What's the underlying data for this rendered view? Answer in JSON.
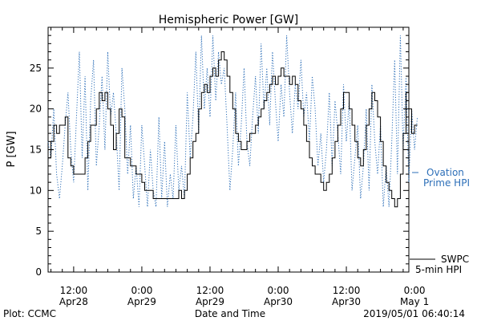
{
  "chart_data": {
    "type": "line",
    "title": "Hemispheric Power [GW]",
    "xlabel": "Date and Time",
    "ylabel": "P [GW]",
    "ylim": [
      0,
      30
    ],
    "yticks": [
      0,
      5,
      10,
      15,
      20,
      25
    ],
    "xlim_hours": [
      -16.5,
      47.0
    ],
    "xticks": [
      {
        "hour": -12,
        "time": "12:00",
        "date": "Apr28"
      },
      {
        "hour": 0,
        "time": "0:00",
        "date": "Apr29"
      },
      {
        "hour": 12,
        "time": "12:00",
        "date": "Apr29"
      },
      {
        "hour": 24,
        "time": "0:00",
        "date": "Apr30"
      },
      {
        "hour": 36,
        "time": "12:00",
        "date": "Apr30"
      },
      {
        "hour": 48,
        "time": "0:00",
        "date": "May 1"
      }
    ],
    "series": [
      {
        "name": "SWPC 5-min HPI",
        "color": "#000000",
        "style": "solid",
        "points": [
          [
            -16.5,
            14
          ],
          [
            -16,
            16
          ],
          [
            -15.5,
            18
          ],
          [
            -15,
            17
          ],
          [
            -14.5,
            18
          ],
          [
            -14,
            18
          ],
          [
            -13.5,
            19
          ],
          [
            -13,
            14
          ],
          [
            -12.5,
            13
          ],
          [
            -12,
            12
          ],
          [
            -11,
            12
          ],
          [
            -10.5,
            12
          ],
          [
            -10,
            14
          ],
          [
            -9.5,
            16
          ],
          [
            -9,
            18
          ],
          [
            -8.5,
            18
          ],
          [
            -8,
            20
          ],
          [
            -7.5,
            22
          ],
          [
            -7,
            21
          ],
          [
            -6.5,
            22
          ],
          [
            -6,
            20
          ],
          [
            -5.5,
            18
          ],
          [
            -5,
            15
          ],
          [
            -4.5,
            17
          ],
          [
            -4,
            20
          ],
          [
            -3.5,
            19
          ],
          [
            -3,
            14
          ],
          [
            -2.5,
            14
          ],
          [
            -2,
            13
          ],
          [
            -1.5,
            13
          ],
          [
            -1,
            12
          ],
          [
            -0.5,
            12
          ],
          [
            0,
            11
          ],
          [
            0.5,
            10
          ],
          [
            1,
            10
          ],
          [
            1.5,
            10
          ],
          [
            2,
            9
          ],
          [
            3,
            9
          ],
          [
            4,
            9
          ],
          [
            5,
            9
          ],
          [
            6,
            9
          ],
          [
            6.5,
            10
          ],
          [
            7,
            9
          ],
          [
            7.5,
            10
          ],
          [
            8,
            12
          ],
          [
            8.5,
            14
          ],
          [
            9,
            16
          ],
          [
            9.5,
            17
          ],
          [
            10,
            20
          ],
          [
            10.5,
            22
          ],
          [
            11,
            23
          ],
          [
            11.5,
            22
          ],
          [
            12,
            24
          ],
          [
            12.5,
            25
          ],
          [
            13,
            24
          ],
          [
            13.5,
            26
          ],
          [
            14,
            27
          ],
          [
            14.5,
            26
          ],
          [
            15,
            24
          ],
          [
            15.5,
            22
          ],
          [
            16,
            20
          ],
          [
            16.5,
            17
          ],
          [
            17,
            16
          ],
          [
            17.5,
            15
          ],
          [
            18,
            15
          ],
          [
            18.5,
            16
          ],
          [
            19,
            17
          ],
          [
            19.5,
            17
          ],
          [
            20,
            18
          ],
          [
            20.5,
            19
          ],
          [
            21,
            20
          ],
          [
            21.5,
            21
          ],
          [
            22,
            22
          ],
          [
            22.5,
            23
          ],
          [
            23,
            24
          ],
          [
            23.5,
            23
          ],
          [
            24,
            24
          ],
          [
            24.5,
            25
          ],
          [
            25,
            24
          ],
          [
            25.5,
            24
          ],
          [
            26,
            23
          ],
          [
            26.5,
            24
          ],
          [
            27,
            23
          ],
          [
            27.5,
            21
          ],
          [
            28,
            20
          ],
          [
            28.5,
            18
          ],
          [
            29,
            16
          ],
          [
            29.5,
            14
          ],
          [
            30,
            13
          ],
          [
            30.5,
            12
          ],
          [
            31,
            12
          ],
          [
            31.5,
            11
          ],
          [
            32,
            10
          ],
          [
            32.5,
            11
          ],
          [
            33,
            12
          ],
          [
            33.5,
            14
          ],
          [
            34,
            16
          ],
          [
            34.5,
            18
          ],
          [
            35,
            20
          ],
          [
            35.5,
            22
          ],
          [
            36,
            22
          ],
          [
            36.5,
            20
          ],
          [
            37,
            18
          ],
          [
            37.5,
            16
          ],
          [
            38,
            14
          ],
          [
            38.5,
            13
          ],
          [
            39,
            15
          ],
          [
            39.5,
            18
          ],
          [
            40,
            20
          ],
          [
            40.5,
            22
          ],
          [
            41,
            21
          ],
          [
            41.5,
            19
          ],
          [
            42,
            16
          ],
          [
            42.5,
            13
          ],
          [
            43,
            11
          ],
          [
            43.5,
            10
          ],
          [
            44,
            9
          ],
          [
            44.5,
            8
          ],
          [
            45,
            9
          ],
          [
            45.5,
            12
          ],
          [
            46,
            17
          ],
          [
            46.5,
            22
          ],
          [
            47,
            20
          ],
          [
            47.5,
            17
          ],
          [
            48,
            18
          ],
          [
            48.5,
            18
          ]
        ]
      },
      {
        "name": "Ovation Prime HPI",
        "color": "#2d6fb8",
        "style": "dotted",
        "points": [
          [
            -16.5,
            16
          ],
          [
            -16,
            14
          ],
          [
            -15.5,
            20
          ],
          [
            -15,
            12
          ],
          [
            -14.5,
            9
          ],
          [
            -14,
            13
          ],
          [
            -13.5,
            18
          ],
          [
            -13,
            22
          ],
          [
            -12.5,
            15
          ],
          [
            -12,
            11
          ],
          [
            -11.5,
            19
          ],
          [
            -11,
            27
          ],
          [
            -10.5,
            14
          ],
          [
            -10,
            24
          ],
          [
            -9.5,
            10
          ],
          [
            -9,
            21
          ],
          [
            -8.5,
            26
          ],
          [
            -8,
            13
          ],
          [
            -7.5,
            18
          ],
          [
            -7,
            24
          ],
          [
            -6.5,
            15
          ],
          [
            -6,
            27
          ],
          [
            -5.5,
            19
          ],
          [
            -5,
            22
          ],
          [
            -4.5,
            17
          ],
          [
            -4,
            10
          ],
          [
            -3.5,
            25
          ],
          [
            -3,
            20
          ],
          [
            -2.5,
            12
          ],
          [
            -2,
            18
          ],
          [
            -1.5,
            9
          ],
          [
            -1,
            13
          ],
          [
            -0.5,
            8
          ],
          [
            0,
            18
          ],
          [
            0.5,
            13
          ],
          [
            1,
            8
          ],
          [
            1.5,
            15
          ],
          [
            2,
            10
          ],
          [
            2.5,
            8
          ],
          [
            3,
            19
          ],
          [
            3.5,
            9
          ],
          [
            4,
            16
          ],
          [
            4.5,
            8
          ],
          [
            5,
            12
          ],
          [
            5.5,
            9
          ],
          [
            6,
            18
          ],
          [
            6.5,
            10
          ],
          [
            7,
            13
          ],
          [
            7.5,
            9
          ],
          [
            8,
            22
          ],
          [
            8.5,
            14
          ],
          [
            9,
            19
          ],
          [
            9.5,
            27
          ],
          [
            10,
            17
          ],
          [
            10.5,
            29
          ],
          [
            11,
            20
          ],
          [
            11.5,
            25
          ],
          [
            12,
            19
          ],
          [
            12.5,
            29
          ],
          [
            13,
            21
          ],
          [
            13.5,
            27
          ],
          [
            14,
            23
          ],
          [
            14.5,
            25
          ],
          [
            15,
            18
          ],
          [
            15.5,
            10
          ],
          [
            16,
            15
          ],
          [
            16.5,
            22
          ],
          [
            17,
            13
          ],
          [
            17.5,
            18
          ],
          [
            18,
            25
          ],
          [
            18.5,
            16
          ],
          [
            19,
            13
          ],
          [
            19.5,
            19
          ],
          [
            20,
            24
          ],
          [
            20.5,
            17
          ],
          [
            21,
            28
          ],
          [
            21.5,
            20
          ],
          [
            22,
            25
          ],
          [
            22.5,
            18
          ],
          [
            23,
            27
          ],
          [
            23.5,
            21
          ],
          [
            24,
            16
          ],
          [
            24.5,
            23
          ],
          [
            25,
            19
          ],
          [
            25.5,
            29
          ],
          [
            26,
            22
          ],
          [
            26.5,
            17
          ],
          [
            27,
            23
          ],
          [
            27.5,
            20
          ],
          [
            28,
            26
          ],
          [
            28.5,
            19
          ],
          [
            29,
            22
          ],
          [
            29.5,
            16
          ],
          [
            30,
            24
          ],
          [
            30.5,
            20
          ],
          [
            31,
            13
          ],
          [
            31.5,
            17
          ],
          [
            32,
            11
          ],
          [
            32.5,
            15
          ],
          [
            33,
            22
          ],
          [
            33.5,
            13
          ],
          [
            34,
            21
          ],
          [
            34.5,
            17
          ],
          [
            35,
            12
          ],
          [
            35.5,
            23
          ],
          [
            36,
            16
          ],
          [
            36.5,
            21
          ],
          [
            37,
            10
          ],
          [
            37.5,
            14
          ],
          [
            38,
            18
          ],
          [
            38.5,
            9
          ],
          [
            39,
            13
          ],
          [
            39.5,
            20
          ],
          [
            40,
            10
          ],
          [
            40.5,
            23
          ],
          [
            41,
            16
          ],
          [
            41.5,
            12
          ],
          [
            42,
            18
          ],
          [
            42.5,
            8
          ],
          [
            43,
            13
          ],
          [
            43.5,
            8
          ],
          [
            44,
            16
          ],
          [
            44.5,
            26
          ],
          [
            45,
            12
          ],
          [
            45.5,
            29
          ],
          [
            46,
            15
          ],
          [
            46.5,
            24
          ],
          [
            47,
            11
          ],
          [
            47.5,
            20
          ],
          [
            48,
            15
          ],
          [
            48.5,
            19
          ]
        ]
      }
    ],
    "legend": {
      "placement": "right",
      "entries": [
        {
          "series": "Ovation Prime HPI",
          "line1": "Ovation",
          "line2": "Prime HPI"
        },
        {
          "series": "SWPC 5-min HPI",
          "line1": "SWPC",
          "line2": "5-min HPI"
        }
      ]
    }
  },
  "footer": {
    "plot_credit": "Plot: CCMC",
    "timestamp": "2019/05/01 06:40:14"
  }
}
